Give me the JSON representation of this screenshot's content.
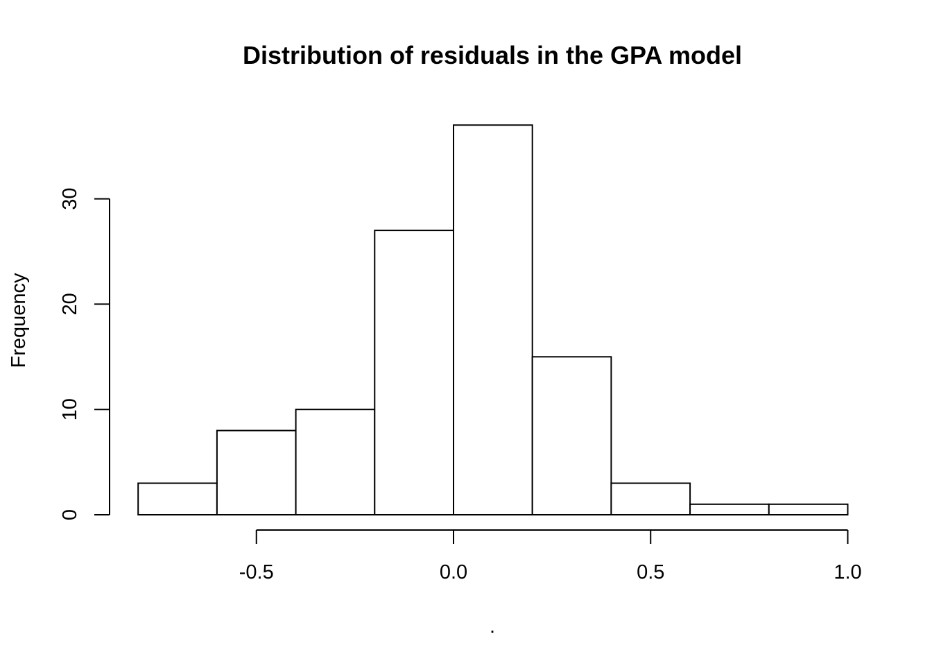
{
  "chart_data": {
    "type": "bar",
    "title": "Distribution of residuals in the GPA model",
    "xlabel": ".",
    "ylabel": "Frequency",
    "bins": [
      {
        "from": -0.8,
        "to": -0.6,
        "count": 3
      },
      {
        "from": -0.6,
        "to": -0.4,
        "count": 8
      },
      {
        "from": -0.4,
        "to": -0.2,
        "count": 10
      },
      {
        "from": -0.2,
        "to": 0.0,
        "count": 27
      },
      {
        "from": 0.0,
        "to": 0.2,
        "count": 37
      },
      {
        "from": 0.2,
        "to": 0.4,
        "count": 15
      },
      {
        "from": 0.4,
        "to": 0.6,
        "count": 3
      },
      {
        "from": 0.6,
        "to": 0.8,
        "count": 1
      },
      {
        "from": 0.8,
        "to": 1.0,
        "count": 1
      }
    ],
    "x_ticks": [
      {
        "value": -0.5,
        "label": "-0.5"
      },
      {
        "value": 0.0,
        "label": "0.0"
      },
      {
        "value": 0.5,
        "label": "0.5"
      },
      {
        "value": 1.0,
        "label": "1.0"
      }
    ],
    "y_ticks": [
      {
        "value": 0,
        "label": "0"
      },
      {
        "value": 10,
        "label": "10"
      },
      {
        "value": 20,
        "label": "20"
      },
      {
        "value": 30,
        "label": "30"
      }
    ],
    "xlim": [
      -0.8,
      1.0
    ],
    "ylim": [
      0,
      37
    ],
    "grid": false,
    "legend": "none",
    "bar_fill": "#ffffff",
    "bar_stroke": "#000000"
  }
}
